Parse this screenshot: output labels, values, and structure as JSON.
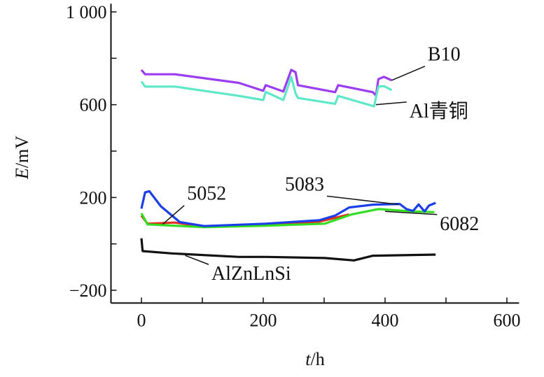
{
  "chart_data": {
    "type": "line",
    "xlabel": {
      "var": "t",
      "unit": "h"
    },
    "ylabel": {
      "var": "E",
      "unit": "mV"
    },
    "xlim": [
      -50,
      620
    ],
    "ylim": [
      -255,
      1035
    ],
    "x_ticks": [
      0,
      200,
      400,
      600
    ],
    "x_tick_labels": [
      "0",
      "200",
      "400",
      "600"
    ],
    "x_minor_ticks": [
      100,
      300,
      500
    ],
    "y_ticks": [
      -200,
      200,
      600,
      1000
    ],
    "y_tick_labels": [
      "−200",
      "200",
      "600",
      "1 000"
    ],
    "y_minor_ticks": [
      0,
      400,
      800
    ],
    "grid": false,
    "series": [
      {
        "name": "B10",
        "color": "#9b3df0",
        "x": [
          0,
          6,
          55,
          160,
          200,
          204,
          233,
          246,
          253,
          257,
          318,
          323,
          380,
          385,
          389,
          398,
          411
        ],
        "y": [
          750,
          731,
          731,
          694,
          660,
          684,
          657,
          750,
          740,
          684,
          654,
          684,
          654,
          639,
          710,
          720,
          705
        ]
      },
      {
        "name": "Al青铜",
        "color": "#5ee8c8",
        "x": [
          0,
          6,
          55,
          160,
          200,
          204,
          233,
          246,
          253,
          257,
          318,
          323,
          382,
          389,
          398,
          411
        ],
        "y": [
          700,
          678,
          678,
          638,
          620,
          655,
          620,
          720,
          649,
          629,
          604,
          638,
          593,
          678,
          680,
          663
        ]
      },
      {
        "name": "5052",
        "color": "#e0301e",
        "x": [
          0,
          10,
          55,
          68,
          103,
          200,
          292,
          341
        ],
        "y": [
          122,
          87,
          92,
          87,
          76,
          82,
          96,
          127
        ]
      },
      {
        "name": "6082",
        "color": "#33dd22",
        "x": [
          0,
          10,
          103,
          200,
          301,
          345,
          389,
          446,
          481
        ],
        "y": [
          132,
          84,
          72,
          78,
          87,
          127,
          150,
          140,
          137
        ]
      },
      {
        "name": "5083",
        "color": "#1a3fe8",
        "x": [
          0,
          6,
          13,
          32,
          63,
          103,
          204,
          292,
          318,
          341,
          380,
          424,
          435,
          446,
          455,
          465,
          472,
          483
        ],
        "y": [
          152,
          222,
          227,
          162,
          94,
          77,
          87,
          102,
          122,
          157,
          169,
          172,
          150,
          142,
          170,
          140,
          165,
          177
        ]
      },
      {
        "name": "AlZnLnSi",
        "color": "#111111",
        "x": [
          0,
          2,
          50,
          160,
          204,
          301,
          349,
          380,
          483
        ],
        "y": [
          24,
          -31,
          -41,
          -56,
          -56,
          -61,
          -71,
          -51,
          -46
        ]
      }
    ],
    "annotations": [
      {
        "text": "B10",
        "x": 470,
        "y": 790,
        "tx": 411,
        "ty": 705
      },
      {
        "text": "Al青铜",
        "x": 440,
        "y": 545,
        "tx": 385,
        "ty": 600
      },
      {
        "text": "5052",
        "x": 75,
        "y": 190,
        "tx": 35,
        "ty": 85
      },
      {
        "text": "5083",
        "x": 300,
        "y": 230,
        "tx": 422,
        "ty": 170
      },
      {
        "text": "6082",
        "x": 490,
        "y": 60,
        "tx": 400,
        "ty": 140
      },
      {
        "text": "AlZnLnSi",
        "x": 115,
        "y": -155,
        "tx": 72,
        "ty": -50
      }
    ]
  }
}
